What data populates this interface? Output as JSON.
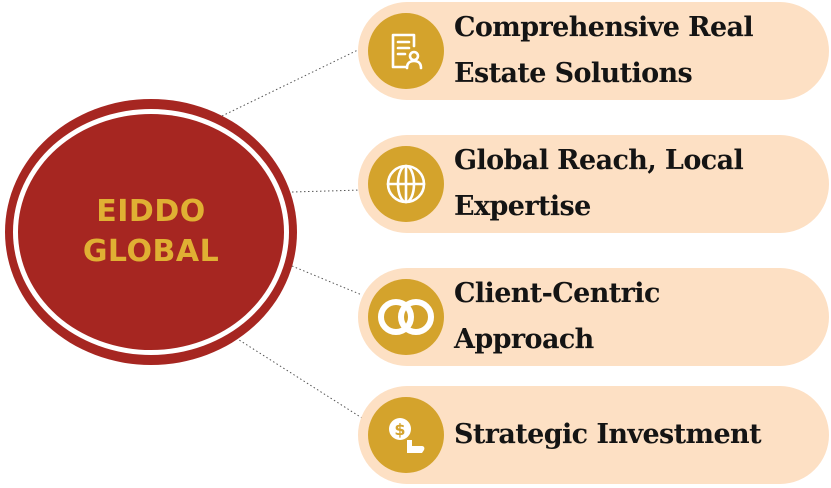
{
  "hub": {
    "line1": "EIDDO",
    "line2": "GLOBAL"
  },
  "items": [
    {
      "text": "Comprehensive Real\nEstate Solutions",
      "icon": "document-user-icon"
    },
    {
      "text": "Global Reach, Local\nExpertise",
      "icon": "globe-icon"
    },
    {
      "text": "Client-Centric\nApproach",
      "icon": "interlocking-rings-icon"
    },
    {
      "text": "Strategic Investment",
      "icon": "dollar-hand-icon"
    }
  ],
  "colors": {
    "hub_red": "#a62621",
    "hub_text": "#e0b033",
    "pill_bg": "#fde0c4",
    "badge_gold": "#d4a32c",
    "label_text": "#141414",
    "connector": "#555555"
  }
}
